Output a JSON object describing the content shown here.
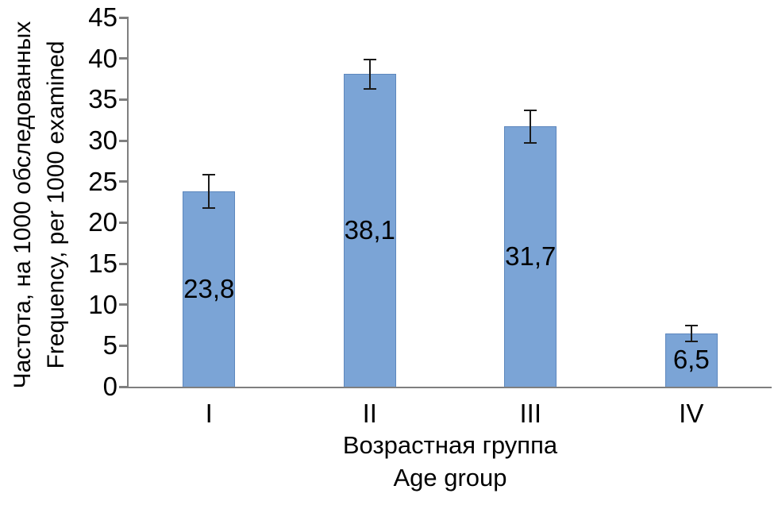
{
  "chart_data": {
    "type": "bar",
    "title": "",
    "categories": [
      "I",
      "II",
      "III",
      "IV"
    ],
    "values": [
      23.8,
      38.1,
      31.7,
      6.5
    ],
    "errors": [
      2.0,
      1.8,
      2.0,
      1.0
    ],
    "value_labels": [
      "23,8",
      "38,1",
      "31,7",
      "6,5"
    ],
    "xlabel_ru": "Возрастная группа",
    "xlabel_en": "Age group",
    "ylabel_ru": "Частота, на 1000 обследованных",
    "ylabel_en": "Frequency, per 1000 examined",
    "ylim": [
      0,
      45
    ],
    "yticks": [
      0,
      5,
      10,
      15,
      20,
      25,
      30,
      35,
      40,
      45
    ],
    "grid": false,
    "legend": false,
    "bar_color": "#7BA4D6",
    "bar_border_color": "#5D87BD",
    "error_color": "#1a1a1a",
    "axis_color": "#7f7f7f",
    "text_color": "#000000"
  }
}
